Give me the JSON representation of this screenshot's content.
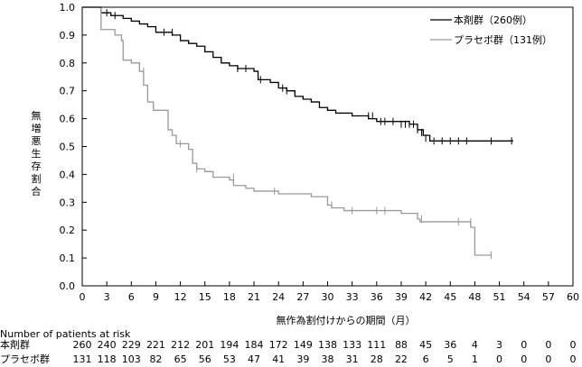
{
  "chart_data": {
    "type": "line",
    "title": "",
    "xlabel": "無作為割付けからの期間（月）",
    "ylabel": "無増悪生存割合",
    "xlim": [
      0,
      60
    ],
    "ylim": [
      0.0,
      1.0
    ],
    "xticks": [
      0,
      3,
      6,
      9,
      12,
      15,
      18,
      21,
      24,
      27,
      30,
      33,
      36,
      39,
      42,
      45,
      48,
      51,
      54,
      57,
      60
    ],
    "yticks": [
      "0.0",
      "0.1",
      "0.2",
      "0.3",
      "0.4",
      "0.5",
      "0.6",
      "0.7",
      "0.8",
      "0.9",
      "1.0"
    ],
    "legend_position": "top-right",
    "series": [
      {
        "name": "本剤群（260例）",
        "color": "#000000",
        "steps": [
          [
            0,
            1.0
          ],
          [
            2,
            1.0
          ],
          [
            2.3,
            0.98
          ],
          [
            3.5,
            0.97
          ],
          [
            5,
            0.96
          ],
          [
            6,
            0.95
          ],
          [
            7,
            0.94
          ],
          [
            8,
            0.93
          ],
          [
            9,
            0.91
          ],
          [
            11,
            0.9
          ],
          [
            12,
            0.88
          ],
          [
            13,
            0.87
          ],
          [
            14,
            0.86
          ],
          [
            15,
            0.84
          ],
          [
            16,
            0.82
          ],
          [
            17,
            0.8
          ],
          [
            18,
            0.79
          ],
          [
            19,
            0.78
          ],
          [
            21,
            0.77
          ],
          [
            21.5,
            0.74
          ],
          [
            23,
            0.73
          ],
          [
            24,
            0.71
          ],
          [
            25,
            0.7
          ],
          [
            26,
            0.68
          ],
          [
            27,
            0.67
          ],
          [
            28,
            0.66
          ],
          [
            29,
            0.64
          ],
          [
            30,
            0.63
          ],
          [
            31,
            0.62
          ],
          [
            33,
            0.61
          ],
          [
            34,
            0.61
          ],
          [
            35,
            0.6
          ],
          [
            36,
            0.59
          ],
          [
            40,
            0.58
          ],
          [
            41,
            0.56
          ],
          [
            41.7,
            0.54
          ],
          [
            42.5,
            0.52
          ],
          [
            52.7,
            0.52
          ]
        ],
        "censors": [
          [
            3,
            0.98
          ],
          [
            4,
            0.97
          ],
          [
            10,
            0.91
          ],
          [
            11,
            0.91
          ],
          [
            19,
            0.78
          ],
          [
            20,
            0.78
          ],
          [
            21.8,
            0.74
          ],
          [
            24.5,
            0.71
          ],
          [
            25,
            0.7
          ],
          [
            35,
            0.61
          ],
          [
            35.5,
            0.61
          ],
          [
            36.5,
            0.59
          ],
          [
            37,
            0.59
          ],
          [
            38,
            0.59
          ],
          [
            39,
            0.58
          ],
          [
            39.5,
            0.58
          ],
          [
            40,
            0.58
          ],
          [
            40.5,
            0.58
          ],
          [
            41,
            0.56
          ],
          [
            41.5,
            0.55
          ],
          [
            42,
            0.53
          ],
          [
            43,
            0.52
          ],
          [
            44,
            0.52
          ],
          [
            45,
            0.52
          ],
          [
            46,
            0.52
          ],
          [
            47,
            0.52
          ],
          [
            50,
            0.52
          ],
          [
            52.5,
            0.52
          ]
        ]
      },
      {
        "name": "プラセボ群（131例）",
        "color": "#999999",
        "steps": [
          [
            0,
            1.0
          ],
          [
            2,
            1.0
          ],
          [
            2.3,
            0.92
          ],
          [
            4,
            0.9
          ],
          [
            4.8,
            0.88
          ],
          [
            5,
            0.81
          ],
          [
            6,
            0.8
          ],
          [
            7,
            0.77
          ],
          [
            7.5,
            0.72
          ],
          [
            8,
            0.66
          ],
          [
            8.7,
            0.63
          ],
          [
            10,
            0.63
          ],
          [
            10.5,
            0.56
          ],
          [
            11,
            0.54
          ],
          [
            11.5,
            0.51
          ],
          [
            13,
            0.49
          ],
          [
            13.5,
            0.44
          ],
          [
            14,
            0.42
          ],
          [
            15,
            0.41
          ],
          [
            16,
            0.39
          ],
          [
            18,
            0.38
          ],
          [
            18.5,
            0.36
          ],
          [
            20,
            0.35
          ],
          [
            21,
            0.34
          ],
          [
            22,
            0.34
          ],
          [
            24,
            0.33
          ],
          [
            28,
            0.32
          ],
          [
            30,
            0.29
          ],
          [
            30.5,
            0.28
          ],
          [
            32,
            0.27
          ],
          [
            35.5,
            0.27
          ],
          [
            38.5,
            0.27
          ],
          [
            39,
            0.26
          ],
          [
            41,
            0.24
          ],
          [
            41.3,
            0.23
          ],
          [
            47,
            0.23
          ],
          [
            47.5,
            0.21
          ],
          [
            48,
            0.11
          ],
          [
            50,
            0.11
          ]
        ],
        "censors": [
          [
            7.5,
            0.77
          ],
          [
            12,
            0.51
          ],
          [
            14,
            0.42
          ],
          [
            18.5,
            0.39
          ],
          [
            23.5,
            0.34
          ],
          [
            30.5,
            0.29
          ],
          [
            33,
            0.27
          ],
          [
            36,
            0.27
          ],
          [
            37,
            0.27
          ],
          [
            41,
            0.25
          ],
          [
            41.5,
            0.24
          ],
          [
            46,
            0.23
          ],
          [
            47.5,
            0.23
          ],
          [
            50,
            0.11
          ]
        ]
      }
    ],
    "risk_table": {
      "title": "Number of patients at risk",
      "rows": [
        {
          "label": "本剤群",
          "values": [
            "260",
            "240",
            "229",
            "221",
            "212",
            "201",
            "194",
            "184",
            "172",
            "149",
            "138",
            "133",
            "111",
            "88",
            "45",
            "36",
            "4",
            "3",
            "0",
            "0",
            "0"
          ]
        },
        {
          "label": "プラセボ群",
          "values": [
            "131",
            "118",
            "103",
            "82",
            "65",
            "56",
            "53",
            "47",
            "41",
            "39",
            "38",
            "31",
            "28",
            "22",
            "6",
            "5",
            "1",
            "0",
            "0",
            "0",
            "0"
          ]
        }
      ]
    }
  }
}
